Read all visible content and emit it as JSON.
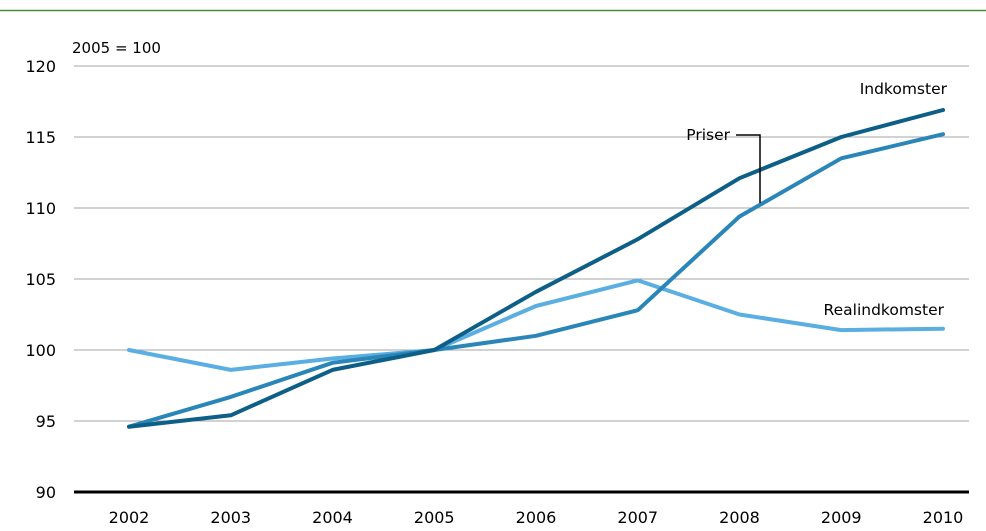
{
  "chart_data": {
    "type": "line",
    "title": "",
    "unit_label": "2005 = 100",
    "xlabel": "",
    "ylabel": "",
    "x": [
      "2002",
      "2003",
      "2004",
      "2005",
      "2006",
      "2007",
      "2008",
      "2009",
      "2010"
    ],
    "ylim": [
      90,
      120
    ],
    "yticks": [
      90,
      95,
      100,
      105,
      110,
      115,
      120
    ],
    "grid": true,
    "legend": "inline labels",
    "series": [
      {
        "name": "Indkomster",
        "color": "#0d5f88",
        "values": [
          94.6,
          95.4,
          98.6,
          100.0,
          104.1,
          107.8,
          112.1,
          115.0,
          116.9
        ]
      },
      {
        "name": "Priser",
        "color": "#2a86b8",
        "values": [
          94.6,
          96.7,
          99.1,
          100.0,
          101.0,
          102.8,
          109.4,
          113.5,
          115.2
        ]
      },
      {
        "name": "Realindkomster",
        "color": "#5aaee2",
        "values": [
          100.0,
          98.6,
          99.4,
          100.0,
          103.1,
          104.9,
          102.5,
          101.4,
          101.5
        ]
      }
    ]
  },
  "colors": {
    "top_rule": "#4d8a3a",
    "grid": "#a6a6a6",
    "axis": "#000000"
  }
}
